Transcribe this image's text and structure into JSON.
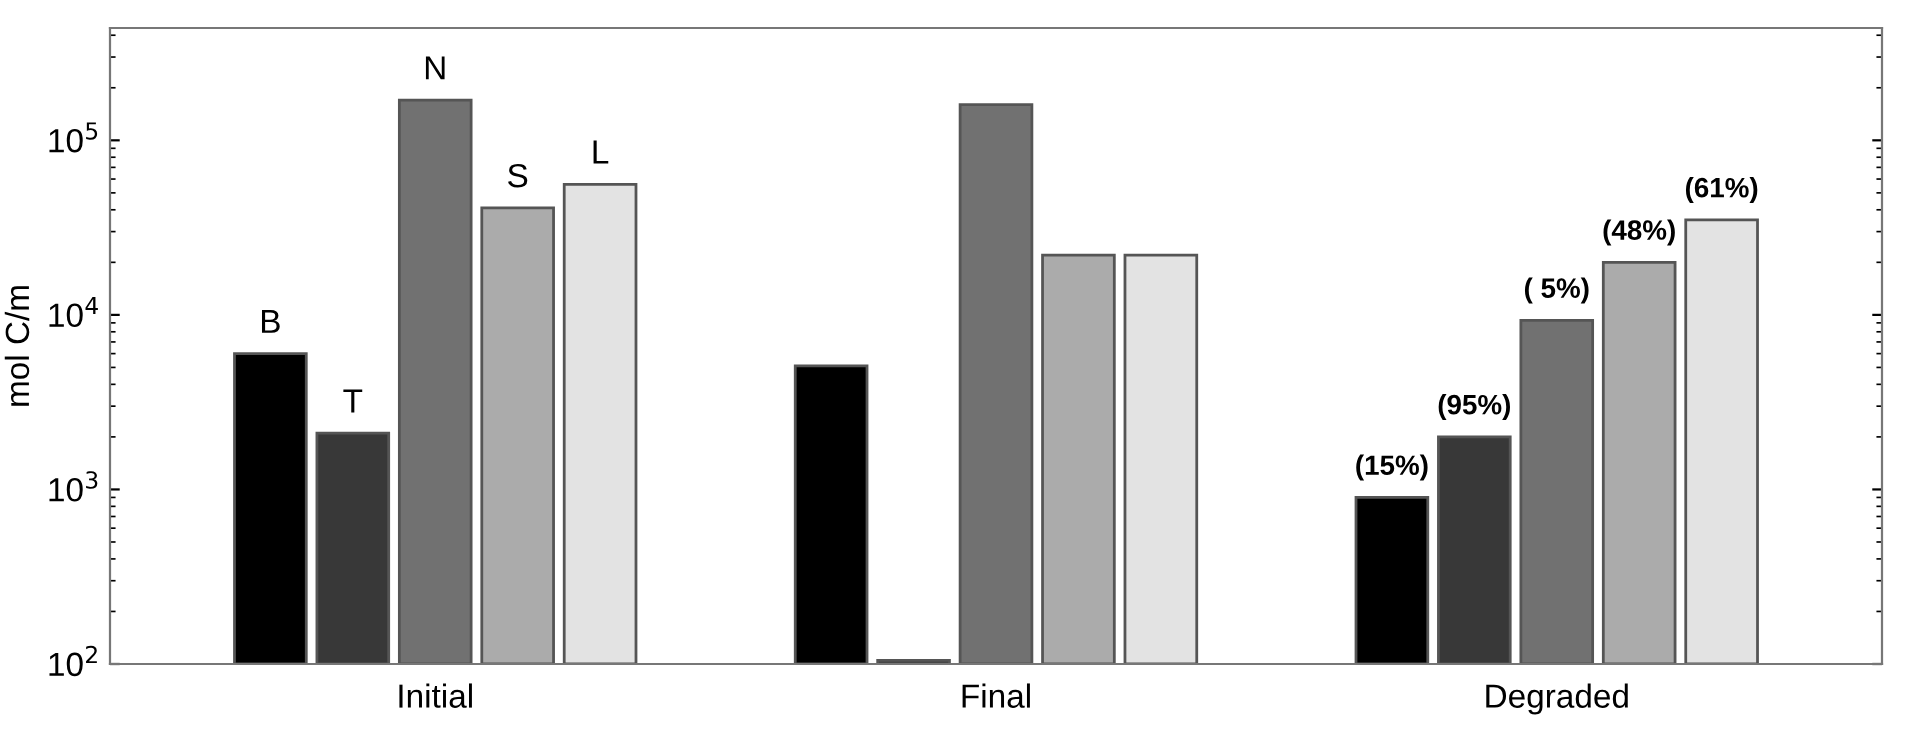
{
  "chart_data": {
    "type": "bar",
    "ylabel": "mol C/m",
    "categories": [
      "Initial",
      "Final",
      "Degraded"
    ],
    "log": "y",
    "ylim": [
      100,
      440000
    ],
    "yticks": [
      {
        "value": 100,
        "label": "10$^{2}$"
      },
      {
        "value": 1000,
        "label": "10$^{3}$"
      },
      {
        "value": 10000,
        "label": "10$^{4}$"
      },
      {
        "value": 100000,
        "label": "10$^{5}$"
      }
    ],
    "grid": false,
    "legend": false,
    "series": [
      {
        "name": "B",
        "color": "#000000",
        "values": [
          6000,
          5100,
          900
        ]
      },
      {
        "name": "T",
        "color": "#383838",
        "values": [
          2100,
          105,
          2000
        ]
      },
      {
        "name": "N",
        "color": "#717171",
        "values": [
          170000,
          160000,
          9300
        ]
      },
      {
        "name": "S",
        "color": "#ababab",
        "values": [
          41000,
          22000,
          20000
        ]
      },
      {
        "name": "L",
        "color": "#e3e3e3",
        "values": [
          56000,
          22000,
          35000
        ]
      }
    ],
    "annotations": [
      "(15%)",
      "(95%)",
      "( 5%)",
      "(48%)",
      "(61%)"
    ]
  }
}
